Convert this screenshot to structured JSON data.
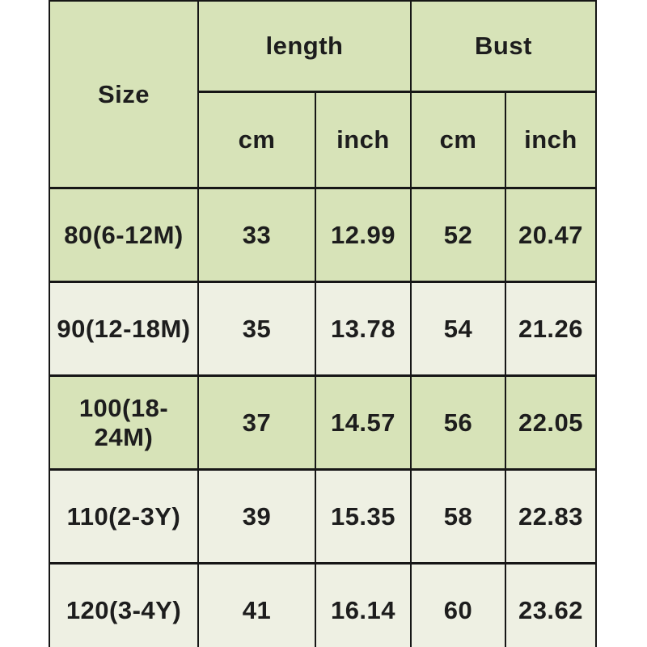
{
  "table": {
    "header": {
      "size_label": "Size",
      "groups": [
        {
          "label": "length",
          "sub": [
            "cm",
            "inch"
          ]
        },
        {
          "label": "Bust",
          "sub": [
            "cm",
            "inch"
          ]
        }
      ]
    },
    "rows": [
      {
        "shade": "green",
        "cells": [
          "80(6-12M)",
          "33",
          "12.99",
          "52",
          "20.47"
        ]
      },
      {
        "shade": "light",
        "cells": [
          "90(12-18M)",
          "35",
          "13.78",
          "54",
          "21.26"
        ]
      },
      {
        "shade": "green",
        "cells": [
          "100(18-24M)",
          "37",
          "14.57",
          "56",
          "22.05"
        ]
      },
      {
        "shade": "light",
        "cells": [
          "110(2-3Y)",
          "39",
          "15.35",
          "58",
          "22.83"
        ]
      },
      {
        "shade": "light",
        "cells": [
          "120(3-4Y)",
          "41",
          "16.14",
          "60",
          "23.62"
        ]
      }
    ],
    "colors": {
      "header_green": "#d7e3b8",
      "row_light": "#eef0e3",
      "border": "#161616",
      "text": "#1d1d1d",
      "page_background": "#ffffff"
    }
  },
  "chart_data": {
    "type": "table",
    "title": "",
    "columns": [
      "Size",
      "length cm",
      "length inch",
      "Bust cm",
      "Bust inch"
    ],
    "rows": [
      [
        "80(6-12M)",
        33,
        12.99,
        52,
        20.47
      ],
      [
        "90(12-18M)",
        35,
        13.78,
        54,
        21.26
      ],
      [
        "100(18-24M)",
        37,
        14.57,
        56,
        22.05
      ],
      [
        "110(2-3Y)",
        39,
        15.35,
        58,
        22.83
      ],
      [
        "120(3-4Y)",
        41,
        16.14,
        60,
        23.62
      ]
    ],
    "layout": {
      "merged_cells": "Size spans both header rows; length and Bust each span two sub-columns (cm, inch)",
      "grid": "black ruled borders",
      "row_shading": [
        "green",
        "light",
        "green",
        "light",
        "light"
      ]
    }
  }
}
